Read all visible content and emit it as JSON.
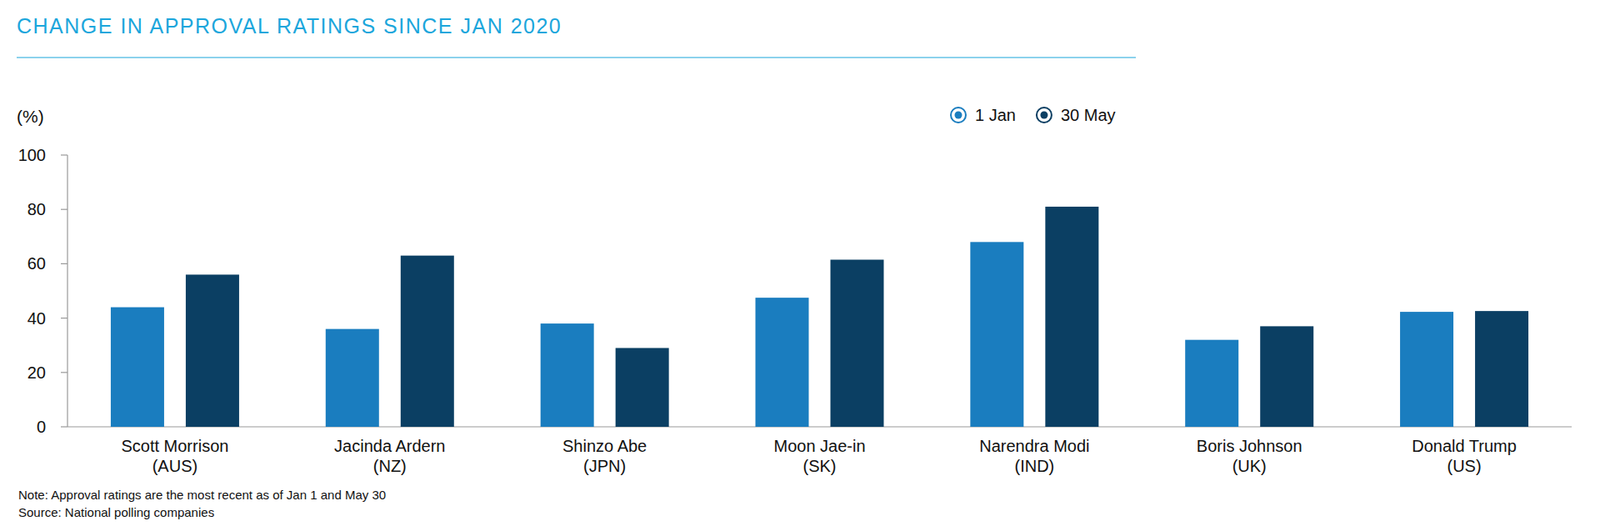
{
  "chart_data": {
    "type": "bar",
    "title": "CHANGE IN APPROVAL RATINGS SINCE JAN 2020",
    "y_label": "(%)",
    "categories": [
      "Scott Morrison\n(AUS)",
      "Jacinda Ardern\n(NZ)",
      "Shinzo Abe\n(JPN)",
      "Moon Jae-in\n(SK)",
      "Narendra Modi\n(IND)",
      "Boris Johnson\n(UK)",
      "Donald Trump\n(US)"
    ],
    "series": [
      {
        "name": "1 Jan",
        "color": "#1a7dbf",
        "values": [
          44,
          36,
          38,
          47.5,
          68,
          32,
          42.3
        ]
      },
      {
        "name": "30 May",
        "color": "#0b3f63",
        "values": [
          56,
          63,
          29,
          61.5,
          81,
          37,
          42.6
        ]
      }
    ],
    "ylim": [
      0,
      100
    ],
    "yticks": [
      0,
      20,
      40,
      60,
      80,
      100
    ],
    "grid": false,
    "legend": "top-right",
    "notes": [
      "Note: Approval ratings are the most recent as of Jan 1 and May 30",
      "Source: National polling companies"
    ]
  }
}
